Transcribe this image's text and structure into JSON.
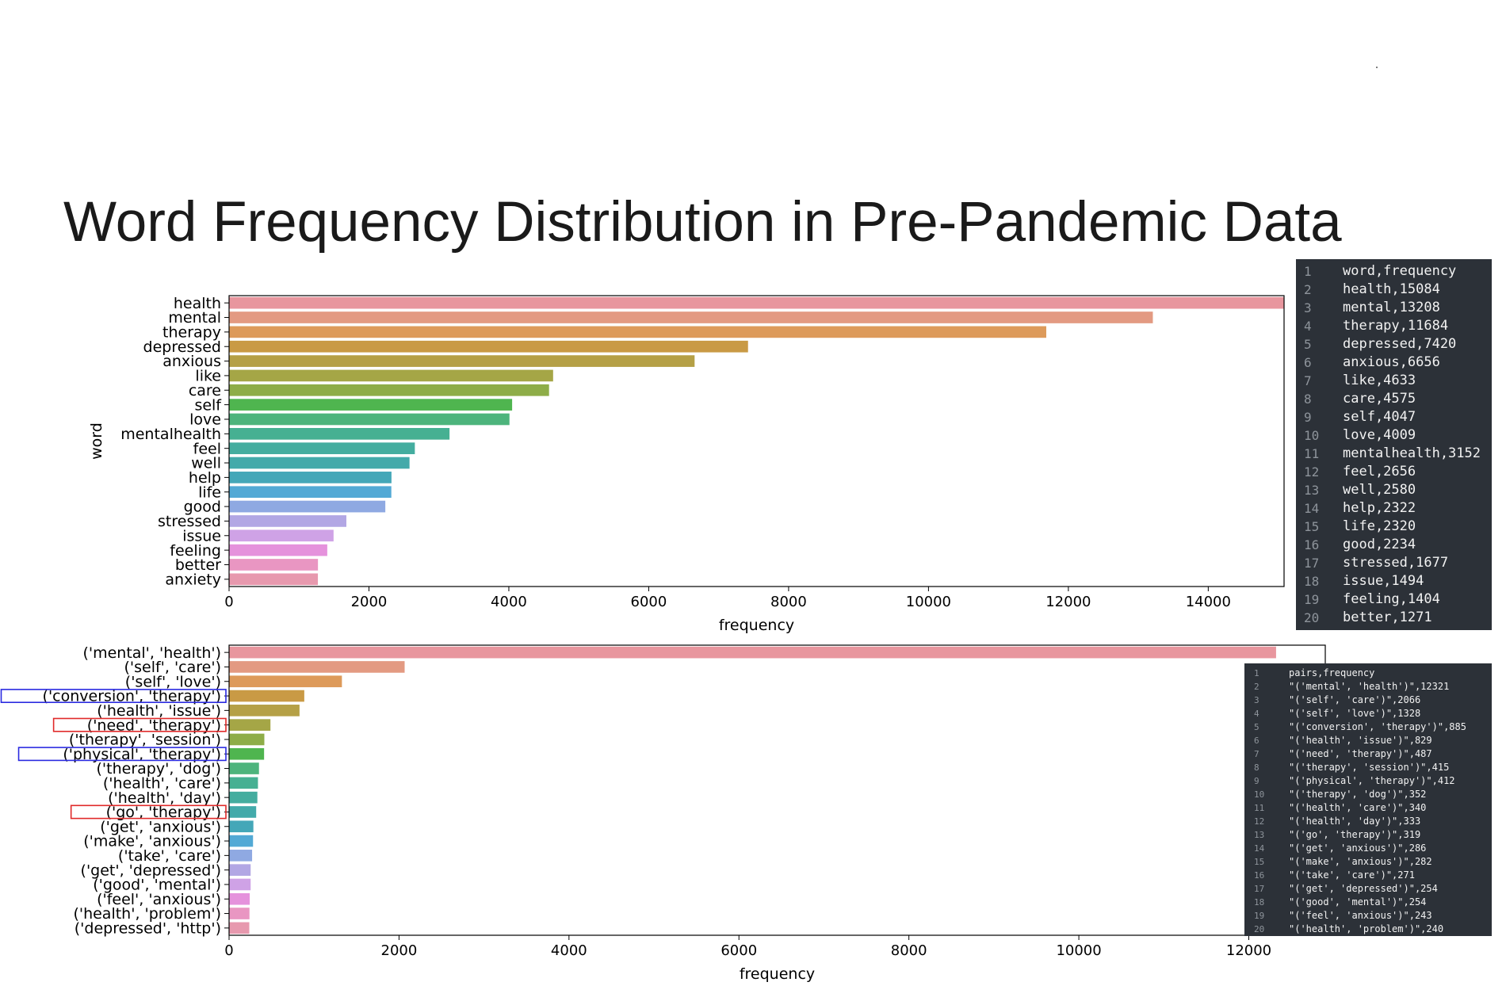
{
  "slide": {
    "title": "Word Frequency Distribution in Pre-Pandemic Data"
  },
  "chart_data": [
    {
      "type": "bar",
      "orientation": "horizontal",
      "title": "",
      "xlabel": "frequency",
      "ylabel": "word",
      "xlim": [
        0,
        15084
      ],
      "xticks": [
        0,
        2000,
        4000,
        6000,
        8000,
        10000,
        12000,
        14000
      ],
      "categories": [
        "health",
        "mental",
        "therapy",
        "depressed",
        "anxious",
        "like",
        "care",
        "self",
        "love",
        "mentalhealth",
        "feel",
        "well",
        "help",
        "life",
        "good",
        "stressed",
        "issue",
        "feeling",
        "better",
        "anxiety"
      ],
      "values": [
        15084,
        13208,
        11684,
        7420,
        6656,
        4633,
        4575,
        4047,
        4009,
        3152,
        2656,
        2580,
        2322,
        2320,
        2234,
        1677,
        1494,
        1404,
        1271,
        1270
      ],
      "colors": [
        "#e8969e",
        "#e39a82",
        "#dd9a5a",
        "#c99a45",
        "#b5a046",
        "#a5a646",
        "#8ead48",
        "#4fb54f",
        "#4db47c",
        "#46b092",
        "#44ad9f",
        "#43aaaa",
        "#44a7b8",
        "#52a9d5",
        "#8fa9e2",
        "#b2a7e4",
        "#cfa2e6",
        "#e592dc",
        "#e996c2",
        "#e799ae"
      ],
      "note_panel": {
        "lines": [
          "word,frequency",
          "health,15084",
          "mental,13208",
          "therapy,11684",
          "depressed,7420",
          "anxious,6656",
          "like,4633",
          "care,4575",
          "self,4047",
          "love,4009",
          "mentalhealth,3152",
          "feel,2656",
          "well,2580",
          "help,2322",
          "life,2320",
          "good,2234",
          "stressed,1677",
          "issue,1494",
          "feeling,1404",
          "better,1271"
        ]
      }
    },
    {
      "type": "bar",
      "orientation": "horizontal",
      "title": "",
      "xlabel": "frequency",
      "ylabel": "",
      "xlim": [
        0,
        12900
      ],
      "xticks": [
        0,
        2000,
        4000,
        6000,
        8000,
        10000,
        12000
      ],
      "categories": [
        "('mental', 'health')",
        "('self', 'care')",
        "('self', 'love')",
        "('conversion', 'therapy')",
        "('health', 'issue')",
        "('need', 'therapy')",
        "('therapy', 'session')",
        "('physical', 'therapy')",
        "('therapy', 'dog')",
        "('health', 'care')",
        "('health', 'day')",
        "('go', 'therapy')",
        "('get', 'anxious')",
        "('make', 'anxious')",
        "('take', 'care')",
        "('get', 'depressed')",
        "('good', 'mental')",
        "('feel', 'anxious')",
        "('health', 'problem')",
        "('depressed', 'http')"
      ],
      "values": [
        12321,
        2066,
        1328,
        885,
        829,
        487,
        415,
        412,
        352,
        340,
        333,
        319,
        286,
        282,
        271,
        254,
        254,
        243,
        240,
        238
      ],
      "colors": [
        "#e8969e",
        "#e39a82",
        "#dd9a5a",
        "#c99a45",
        "#b5a046",
        "#a5a646",
        "#8ead48",
        "#4fb54f",
        "#4db47c",
        "#46b092",
        "#44ad9f",
        "#43aaaa",
        "#44a7b8",
        "#52a9d5",
        "#8fa9e2",
        "#b2a7e4",
        "#cfa2e6",
        "#e592dc",
        "#e996c2",
        "#e799ae"
      ],
      "highlights": [
        {
          "category": "('conversion', 'therapy')",
          "color": "#2a2ae0"
        },
        {
          "category": "('need', 'therapy')",
          "color": "#e02a2a"
        },
        {
          "category": "('physical', 'therapy')",
          "color": "#2a2ae0"
        },
        {
          "category": "('go', 'therapy')",
          "color": "#e02a2a"
        }
      ],
      "note_panel": {
        "lines": [
          "pairs,frequency",
          "\"('mental', 'health')\",12321",
          "\"('self', 'care')\",2066",
          "\"('self', 'love')\",1328",
          "\"('conversion', 'therapy')\",885",
          "\"('health', 'issue')\",829",
          "\"('need', 'therapy')\",487",
          "\"('therapy', 'session')\",415",
          "\"('physical', 'therapy')\",412",
          "\"('therapy', 'dog')\",352",
          "\"('health', 'care')\",340",
          "\"('health', 'day')\",333",
          "\"('go', 'therapy')\",319",
          "\"('get', 'anxious')\",286",
          "\"('make', 'anxious')\",282",
          "\"('take', 'care')\",271",
          "\"('get', 'depressed')\",254",
          "\"('good', 'mental')\",254",
          "\"('feel', 'anxious')\",243",
          "\"('health', 'problem')\",240"
        ]
      }
    }
  ]
}
